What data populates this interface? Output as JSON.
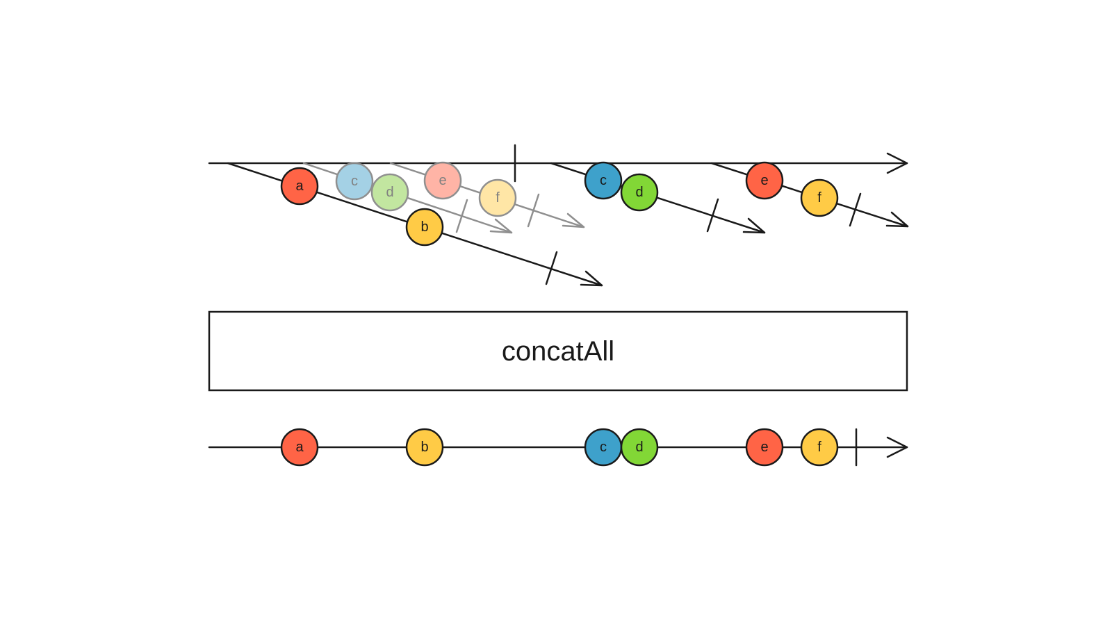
{
  "operator": {
    "label": "concatAll"
  },
  "colors": {
    "a": "#ff6446",
    "b": "#ffcb46",
    "c": "#3ea1cb",
    "d": "#82d736",
    "e": "#ff6446",
    "f": "#ffcb46",
    "ghost_c": "#a0cfe4",
    "ghost_d": "#bfe59b",
    "ghost_e": "#ffb1a2",
    "ghost_f": "#ffe5a2"
  },
  "input_stream": {
    "completes": true,
    "inner_streams": [
      {
        "id": "inner-1",
        "values": [
          "a",
          "b"
        ],
        "completes": true,
        "ghost": false
      },
      {
        "id": "inner-2-original",
        "values": [
          "c",
          "d"
        ],
        "completes": true,
        "ghost": true
      },
      {
        "id": "inner-3-original",
        "values": [
          "e",
          "f"
        ],
        "completes": true,
        "ghost": true
      },
      {
        "id": "inner-2",
        "values": [
          "c",
          "d"
        ],
        "completes": true,
        "ghost": false
      },
      {
        "id": "inner-3",
        "values": [
          "e",
          "f"
        ],
        "completes": true,
        "ghost": false
      }
    ]
  },
  "output_stream": {
    "values": [
      "a",
      "b",
      "c",
      "d",
      "e",
      "f"
    ],
    "completes": true
  }
}
